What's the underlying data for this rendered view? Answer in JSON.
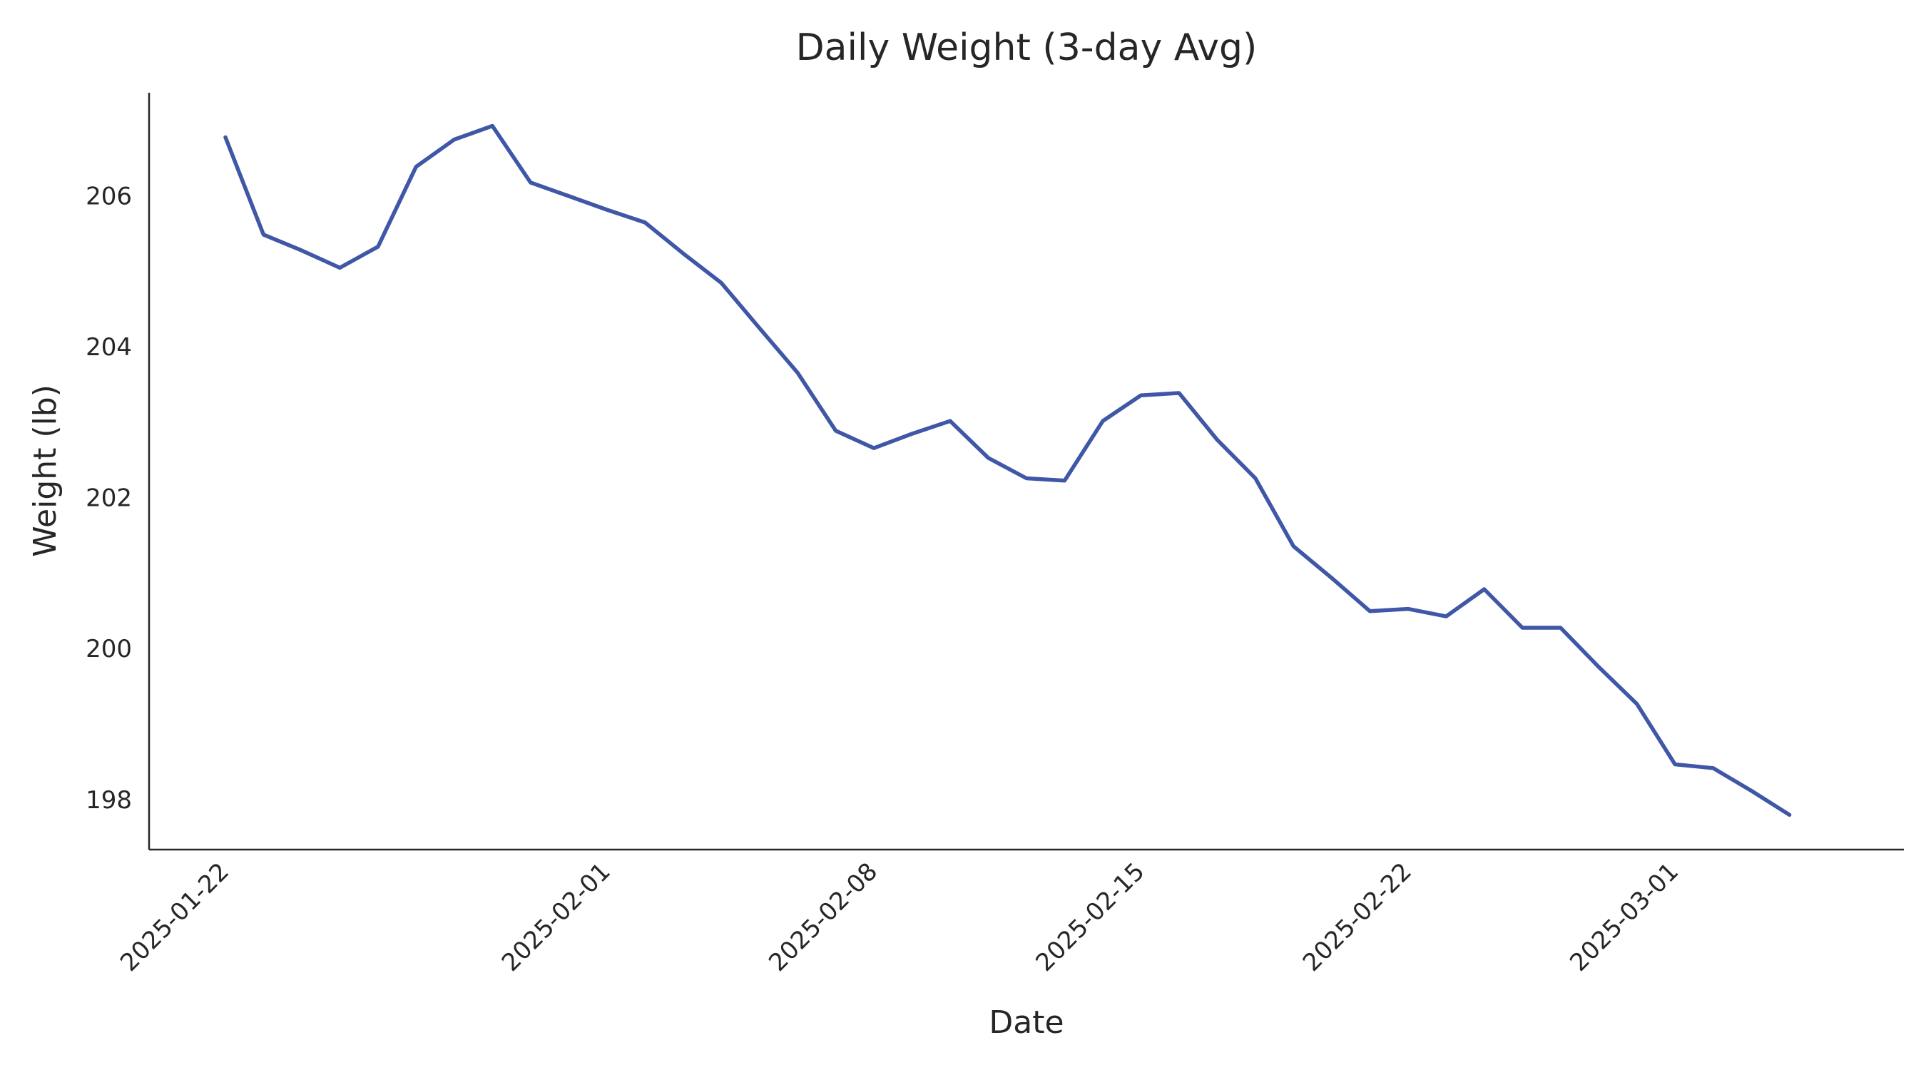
{
  "chart_data": {
    "type": "line",
    "title": "Daily Weight (3-day Avg)",
    "x_label": "Date",
    "y_label": "Weight (lb)",
    "x": [
      "2025-01-22",
      "2025-01-23",
      "2025-01-24",
      "2025-01-25",
      "2025-01-26",
      "2025-01-27",
      "2025-01-28",
      "2025-01-29",
      "2025-01-30",
      "2025-01-31",
      "2025-02-01",
      "2025-02-02",
      "2025-02-03",
      "2025-02-04",
      "2025-02-05",
      "2025-02-06",
      "2025-02-07",
      "2025-02-08",
      "2025-02-09",
      "2025-02-10",
      "2025-02-11",
      "2025-02-12",
      "2025-02-13",
      "2025-02-14",
      "2025-02-15",
      "2025-02-16",
      "2025-02-17",
      "2025-02-18",
      "2025-02-19",
      "2025-02-20",
      "2025-02-21",
      "2025-02-22",
      "2025-02-23",
      "2025-02-24",
      "2025-02-25",
      "2025-02-26",
      "2025-02-27",
      "2025-02-28",
      "2025-03-01",
      "2025-03-02",
      "2025-03-03",
      "2025-03-04"
    ],
    "values": [
      206.8,
      205.51,
      205.3,
      205.07,
      205.35,
      206.41,
      206.77,
      206.95,
      206.2,
      206.02,
      205.84,
      205.67,
      205.26,
      204.87,
      204.27,
      203.68,
      202.91,
      202.68,
      202.87,
      203.04,
      202.55,
      202.28,
      202.25,
      203.04,
      203.38,
      203.41,
      202.79,
      202.28,
      201.38,
      200.96,
      200.52,
      200.55,
      200.45,
      200.81,
      200.3,
      200.3,
      199.78,
      199.29,
      198.49,
      198.44,
      198.14,
      197.82
    ],
    "color": "#3f57a6",
    "xlim": [
      "2025-01-20",
      "2025-03-07"
    ],
    "xticks": [
      "2025-01-22",
      "2025-02-01",
      "2025-02-08",
      "2025-02-15",
      "2025-02-22",
      "2025-03-01"
    ],
    "ylim": [
      197.36,
      207.39
    ],
    "yticks": [
      198,
      200,
      202,
      204,
      206
    ],
    "grid": false
  }
}
